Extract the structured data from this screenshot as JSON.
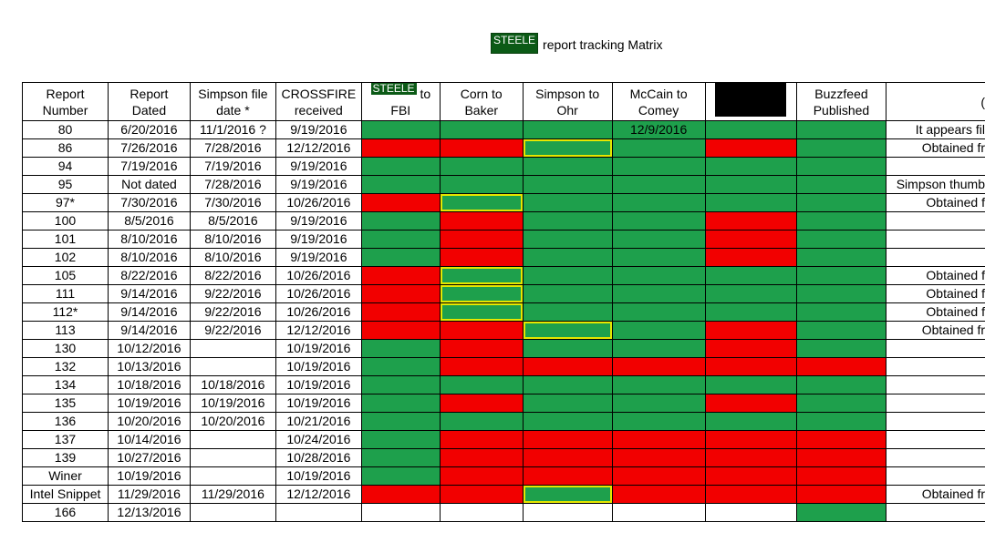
{
  "title": {
    "badge": "STEELE",
    "rest": "report tracking Matrix"
  },
  "headers": {
    "report_number": [
      "Report",
      "Number"
    ],
    "report_dated": [
      "Report",
      "Dated"
    ],
    "simpson_file_date": [
      "Simpson file",
      "date *"
    ],
    "crossfire": [
      "CROSSFIRE",
      "received"
    ],
    "steele_fbi_badge": "STEELE",
    "steele_fbi_to": "to",
    "steele_fbi_line2": "FBI",
    "corn_baker": [
      "Corn to",
      "Baker"
    ],
    "simpson_ohr": [
      "Simpson to",
      "Ohr"
    ],
    "mccain_comey": [
      "McCain to",
      "Comey"
    ],
    "redacted": "",
    "buzzfeed": [
      "Buzzfeed",
      "Published"
    ],
    "notes_fragment": "("
  },
  "colors": {
    "green": "#1ea04c",
    "red": "#f20000",
    "yellow_outline": "#e6e600",
    "badge": "#0b5a16"
  },
  "rows": [
    {
      "num": "80",
      "dated": "6/20/2016",
      "simpson": "11/1/2016 ?",
      "crossfire": "9/19/2016",
      "status": [
        "g",
        "g",
        "g",
        "g:12/9/2016",
        "g",
        "g"
      ],
      "note": "It appears fil"
    },
    {
      "num": "86",
      "dated": "7/26/2016",
      "simpson": "7/28/2016",
      "crossfire": "12/12/2016",
      "status": [
        "r",
        "r",
        "gy",
        "g",
        "r",
        "g"
      ],
      "note": "Obtained fr"
    },
    {
      "num": "94",
      "dated": "7/19/2016",
      "simpson": "7/19/2016",
      "crossfire": "9/19/2016",
      "status": [
        "g",
        "g",
        "g",
        "g",
        "g",
        "g"
      ],
      "note": ""
    },
    {
      "num": "95",
      "dated": "Not dated",
      "simpson": "7/28/2016",
      "crossfire": "9/19/2016",
      "status": [
        "g",
        "g",
        "g",
        "g",
        "g",
        "g"
      ],
      "note": "Simpson thumb"
    },
    {
      "num": "97*",
      "dated": "7/30/2016",
      "simpson": "7/30/2016",
      "crossfire": "10/26/2016",
      "status": [
        "r",
        "gy",
        "g",
        "g",
        "g",
        "g"
      ],
      "note": "Obtained f"
    },
    {
      "num": "100",
      "dated": "8/5/2016",
      "simpson": "8/5/2016",
      "crossfire": "9/19/2016",
      "status": [
        "g",
        "r",
        "g",
        "g",
        "r",
        "g"
      ],
      "note": ""
    },
    {
      "num": "101",
      "dated": "8/10/2016",
      "simpson": "8/10/2016",
      "crossfire": "9/19/2016",
      "status": [
        "g",
        "r",
        "g",
        "g",
        "r",
        "g"
      ],
      "note": ""
    },
    {
      "num": "102",
      "dated": "8/10/2016",
      "simpson": "8/10/2016",
      "crossfire": "9/19/2016",
      "status": [
        "g",
        "r",
        "g",
        "g",
        "r",
        "g"
      ],
      "note": ""
    },
    {
      "num": "105",
      "dated": "8/22/2016",
      "simpson": "8/22/2016",
      "crossfire": "10/26/2016",
      "status": [
        "r",
        "gy",
        "g",
        "g",
        "g",
        "g"
      ],
      "note": "Obtained f"
    },
    {
      "num": "111",
      "dated": "9/14/2016",
      "simpson": "9/22/2016",
      "crossfire": "10/26/2016",
      "status": [
        "r",
        "gy",
        "g",
        "g",
        "g",
        "g"
      ],
      "note": "Obtained f"
    },
    {
      "num": "112*",
      "dated": "9/14/2016",
      "simpson": "9/22/2016",
      "crossfire": "10/26/2016",
      "status": [
        "r",
        "gy",
        "g",
        "g",
        "g",
        "g"
      ],
      "note": "Obtained f"
    },
    {
      "num": "113",
      "dated": "9/14/2016",
      "simpson": "9/22/2016",
      "crossfire": "12/12/2016",
      "status": [
        "r",
        "r",
        "gy",
        "g",
        "r",
        "g"
      ],
      "note": "Obtained fr"
    },
    {
      "num": "130",
      "dated": "10/12/2016",
      "simpson": "",
      "crossfire": "10/19/2016",
      "status": [
        "g",
        "r",
        "g",
        "g",
        "r",
        "g"
      ],
      "note": ""
    },
    {
      "num": "132",
      "dated": "10/13/2016",
      "simpson": "",
      "crossfire": "10/19/2016",
      "status": [
        "g",
        "r",
        "r",
        "r",
        "r",
        "r"
      ],
      "note": ""
    },
    {
      "num": "134",
      "dated": "10/18/2016",
      "simpson": "10/18/2016",
      "crossfire": "10/19/2016",
      "status": [
        "g",
        "g",
        "g",
        "g",
        "g",
        "g"
      ],
      "note": ""
    },
    {
      "num": "135",
      "dated": "10/19/2016",
      "simpson": "10/19/2016",
      "crossfire": "10/19/2016",
      "status": [
        "g",
        "r",
        "g",
        "g",
        "r",
        "g"
      ],
      "note": ""
    },
    {
      "num": "136",
      "dated": "10/20/2016",
      "simpson": "10/20/2016",
      "crossfire": "10/21/2016",
      "status": [
        "g",
        "g",
        "g",
        "g",
        "g",
        "g"
      ],
      "note": ""
    },
    {
      "num": "137",
      "dated": "10/14/2016",
      "simpson": "",
      "crossfire": "10/24/2016",
      "status": [
        "g",
        "r",
        "r",
        "r",
        "r",
        "r"
      ],
      "note": ""
    },
    {
      "num": "139",
      "dated": "10/27/2016",
      "simpson": "",
      "crossfire": "10/28/2016",
      "status": [
        "g",
        "r",
        "r",
        "r",
        "r",
        "r"
      ],
      "note": ""
    },
    {
      "num": "Winer",
      "dated": "10/19/2016",
      "simpson": "",
      "crossfire": "10/19/2016",
      "status": [
        "g",
        "r",
        "r",
        "r",
        "r",
        "r"
      ],
      "note": ""
    },
    {
      "num": "Intel Snippet",
      "dated": "11/29/2016",
      "simpson": "11/29/2016",
      "crossfire": "12/12/2016",
      "status": [
        "r",
        "r",
        "gy",
        "r",
        "r",
        "r"
      ],
      "note": "Obtained fr"
    },
    {
      "num": "166",
      "dated": "12/13/2016",
      "simpson": "",
      "crossfire": "",
      "status": [
        "",
        "",
        "",
        "",
        "",
        "g"
      ],
      "note": ""
    }
  ]
}
